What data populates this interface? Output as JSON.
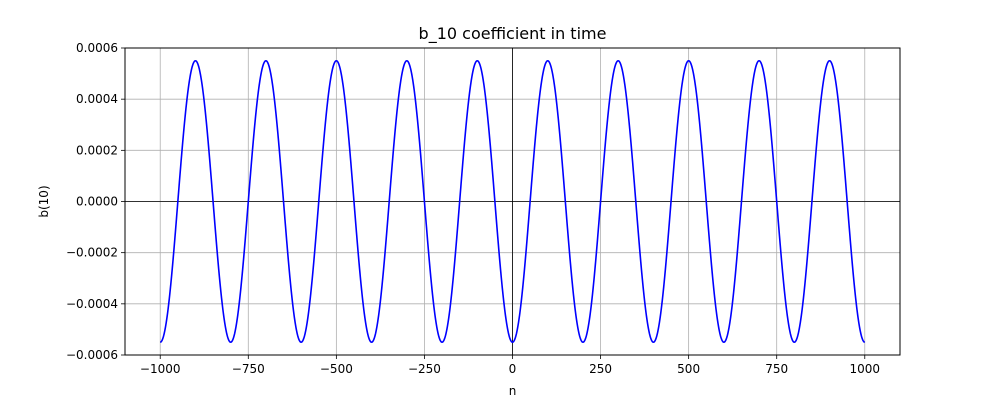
{
  "chart_data": {
    "type": "line",
    "title": "b_10 coefficient in time",
    "xlabel": "n",
    "ylabel": "b(10)",
    "xlim": [
      -1100,
      1100
    ],
    "ylim": [
      -0.0006,
      0.0006
    ],
    "x_ticks": [
      -1000,
      -750,
      -500,
      -250,
      0,
      250,
      500,
      750,
      1000
    ],
    "x_tick_labels": [
      "−1000",
      "−750",
      "−500",
      "−250",
      "0",
      "250",
      "500",
      "750",
      "1000"
    ],
    "y_ticks": [
      -0.0006,
      -0.0004,
      -0.0002,
      0.0,
      0.0002,
      0.0004,
      0.0006
    ],
    "y_tick_labels": [
      "−0.0006",
      "−0.0004",
      "−0.0002",
      "0.0000",
      "0.0002",
      "0.0004",
      "0.0006"
    ],
    "grid": true,
    "reference_lines": {
      "x": 0,
      "y": 0
    },
    "series": [
      {
        "color": "#0000ff",
        "function": "-A*cos(2*pi*n/P)",
        "amplitude": 0.00055,
        "period": 200,
        "x_range": [
          -1000,
          1000
        ]
      }
    ]
  }
}
